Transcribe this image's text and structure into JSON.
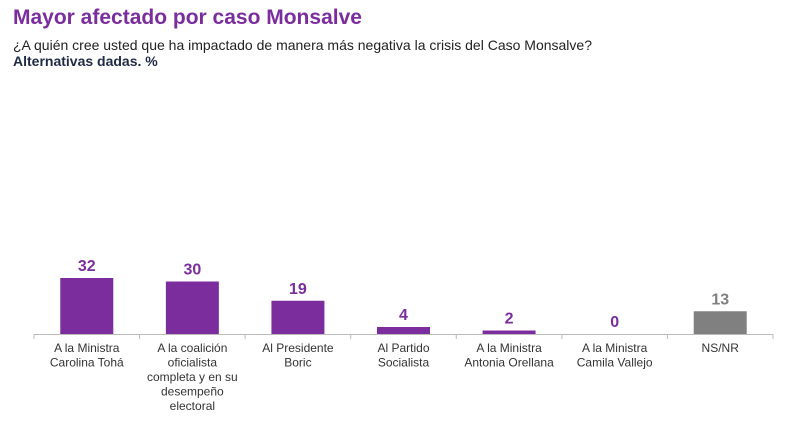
{
  "chart_data": {
    "type": "bar",
    "title": "Mayor afectado por caso Monsalve",
    "subtitle": "¿A quién cree usted que ha impactado de manera más negativa la crisis del Caso Monsalve?",
    "note": "Alternativas dadas. %",
    "categories": [
      [
        "A la Ministra",
        "Carolina Tohá"
      ],
      [
        "A la coalición",
        "oficialista",
        "completa y en su",
        "desempeño",
        "electoral"
      ],
      [
        "Al Presidente",
        "Boric"
      ],
      [
        "Al Partido",
        "Socialista"
      ],
      [
        "A la Ministra",
        "Antonia Orellana"
      ],
      [
        "A la Ministra",
        "Camila Vallejo"
      ],
      [
        "NS/NR"
      ]
    ],
    "values": [
      32,
      30,
      19,
      4,
      2,
      0,
      13
    ],
    "colors": [
      "#7b2d9e",
      "#7b2d9e",
      "#7b2d9e",
      "#7b2d9e",
      "#7b2d9e",
      "#7b2d9e",
      "#808080"
    ],
    "ylim": [
      0,
      32
    ],
    "grid": false,
    "data_labels": true
  }
}
